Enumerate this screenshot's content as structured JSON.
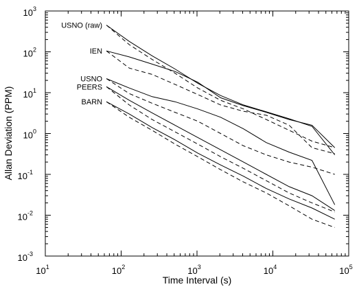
{
  "chart_data": {
    "type": "line",
    "xlabel": "Time Interval (s)",
    "ylabel": "Allan Deviation (PPM)",
    "xscale": "log",
    "yscale": "log",
    "xlim": [
      10,
      100000
    ],
    "ylim": [
      0.001,
      1000
    ],
    "grid": false,
    "x_ticks": [
      {
        "base": "10",
        "exp": "1"
      },
      {
        "base": "10",
        "exp": "2"
      },
      {
        "base": "10",
        "exp": "3"
      },
      {
        "base": "10",
        "exp": "4"
      },
      {
        "base": "10",
        "exp": "5"
      }
    ],
    "y_ticks": [
      {
        "base": "10",
        "exp": "-3"
      },
      {
        "base": "10",
        "exp": "-2"
      },
      {
        "base": "10",
        "exp": "-1"
      },
      {
        "base": "10",
        "exp": "0"
      },
      {
        "base": "10",
        "exp": "1"
      },
      {
        "base": "10",
        "exp": "2"
      },
      {
        "base": "10",
        "exp": "3"
      }
    ],
    "series": [
      {
        "name": "USNO (raw)",
        "style": "solid",
        "x": [
          64,
          128,
          256,
          512,
          1024,
          2048,
          4096,
          8192,
          16384,
          32768,
          65536
        ],
        "y": [
          450,
          180,
          80,
          38,
          17,
          8.5,
          5.0,
          3.4,
          2.3,
          1.5,
          0.3
        ]
      },
      {
        "name": "USNO (raw)",
        "style": "dashed",
        "x": [
          64,
          128,
          256,
          512,
          1024,
          2048,
          4096,
          8192,
          16384,
          32768,
          65536
        ],
        "y": [
          450,
          150,
          65,
          30,
          13,
          6.5,
          4.0,
          2.2,
          1.2,
          0.65,
          0.45
        ]
      },
      {
        "name": "IEN",
        "style": "solid",
        "x": [
          64,
          128,
          256,
          512,
          1024,
          2048,
          4096,
          8192,
          16384,
          32768,
          65536
        ],
        "y": [
          105,
          75,
          50,
          33,
          18,
          7.5,
          4.8,
          3.3,
          2.2,
          1.6,
          0.45
        ]
      },
      {
        "name": "IEN",
        "style": "dashed",
        "x": [
          64,
          128,
          256,
          512,
          1024,
          2048,
          4096,
          8192,
          16384,
          32768,
          65536
        ],
        "y": [
          105,
          40,
          28,
          16,
          9.0,
          5.0,
          3.5,
          2.8,
          1.6,
          0.45,
          0.32
        ]
      },
      {
        "name": "USNO",
        "style": "solid",
        "x": [
          64,
          128,
          256,
          512,
          1024,
          2048,
          4096,
          8192,
          16384,
          32768,
          65536
        ],
        "y": [
          22,
          13,
          8,
          6,
          4,
          2.5,
          1.3,
          0.6,
          0.35,
          0.22,
          0.018
        ]
      },
      {
        "name": "USNO",
        "style": "dashed",
        "x": [
          64,
          128,
          256,
          512,
          1024,
          2048,
          4096,
          8192,
          16384,
          32768,
          65536
        ],
        "y": [
          22,
          9.5,
          5.5,
          3.3,
          2.0,
          1.0,
          0.5,
          0.3,
          0.2,
          0.15,
          0.1
        ]
      },
      {
        "name": "PEERS",
        "style": "solid",
        "x": [
          64,
          128,
          256,
          512,
          1024,
          2048,
          4096,
          8192,
          16384,
          32768,
          65536
        ],
        "y": [
          14,
          6.5,
          3.2,
          1.6,
          0.8,
          0.4,
          0.2,
          0.1,
          0.05,
          0.03,
          0.013
        ]
      },
      {
        "name": "PEERS",
        "style": "dashed",
        "x": [
          64,
          128,
          256,
          512,
          1024,
          2048,
          4096,
          8192,
          16384,
          32768,
          65536
        ],
        "y": [
          14,
          5,
          2.2,
          1.1,
          0.55,
          0.27,
          0.14,
          0.07,
          0.035,
          0.02,
          0.012
        ]
      },
      {
        "name": "BARN",
        "style": "solid",
        "x": [
          64,
          128,
          256,
          512,
          1024,
          2048,
          4096,
          8192,
          16384,
          32768,
          65536
        ],
        "y": [
          6,
          3,
          1.4,
          0.7,
          0.33,
          0.17,
          0.09,
          0.045,
          0.025,
          0.015,
          0.008
        ]
      },
      {
        "name": "BARN",
        "style": "dashed",
        "x": [
          64,
          128,
          256,
          512,
          1024,
          2048,
          4096,
          8192,
          16384,
          32768,
          65536
        ],
        "y": [
          6,
          2.5,
          1.2,
          0.55,
          0.27,
          0.13,
          0.065,
          0.035,
          0.017,
          0.008,
          0.005
        ]
      }
    ],
    "series_labels": [
      "USNO (raw)",
      "IEN",
      "USNO",
      "PEERS",
      "BARN"
    ]
  }
}
